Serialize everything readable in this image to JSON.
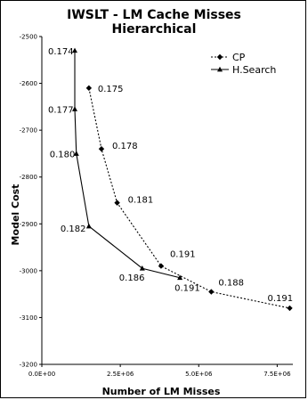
{
  "chart_data": {
    "type": "line",
    "title": "IWSLT - LM Cache Misses",
    "subtitle": "Hierarchical",
    "xlabel": "Number of LM Misses",
    "ylabel": "Model Cost",
    "xlim": [
      0,
      8000000
    ],
    "ylim": [
      -3200,
      -2500
    ],
    "x_ticks": [
      {
        "value": 0,
        "label": "0.0E+00"
      },
      {
        "value": 2500000,
        "label": "2.5E+06"
      },
      {
        "value": 5000000,
        "label": "5.0E+06"
      },
      {
        "value": 7500000,
        "label": "7.5E+06"
      }
    ],
    "y_ticks": [
      {
        "value": -2500,
        "label": "-2500"
      },
      {
        "value": -2600,
        "label": "-2600"
      },
      {
        "value": -2700,
        "label": "-2700"
      },
      {
        "value": -2800,
        "label": "-2800"
      },
      {
        "value": -2900,
        "label": "-2900"
      },
      {
        "value": -3000,
        "label": "-3000"
      },
      {
        "value": -3100,
        "label": "-3100"
      },
      {
        "value": -3200,
        "label": "-3200"
      }
    ],
    "grid": false,
    "legend_position": "top-right",
    "series": [
      {
        "name": "CP",
        "style": "dotted",
        "marker": "diamond",
        "points": [
          {
            "x": 1500000,
            "y": -2610,
            "label": "0.175"
          },
          {
            "x": 1900000,
            "y": -2740,
            "label": "0.178"
          },
          {
            "x": 2400000,
            "y": -2855,
            "label": "0.181"
          },
          {
            "x": 3800000,
            "y": -2990,
            "label": "0.191"
          },
          {
            "x": 5400000,
            "y": -3045,
            "label": "0.188"
          },
          {
            "x": 7900000,
            "y": -3080,
            "label": "0.191"
          }
        ]
      },
      {
        "name": "H.Search",
        "style": "solid",
        "marker": "triangle",
        "points": [
          {
            "x": 1050000,
            "y": -2530,
            "label": "0.174"
          },
          {
            "x": 1050000,
            "y": -2655,
            "label": "0.177"
          },
          {
            "x": 1100000,
            "y": -2750,
            "label": "0.180"
          },
          {
            "x": 1500000,
            "y": -2905,
            "label": "0.182"
          },
          {
            "x": 3200000,
            "y": -2995,
            "label": "0.186"
          },
          {
            "x": 4400000,
            "y": -3015,
            "label": "0.191"
          }
        ]
      }
    ]
  }
}
